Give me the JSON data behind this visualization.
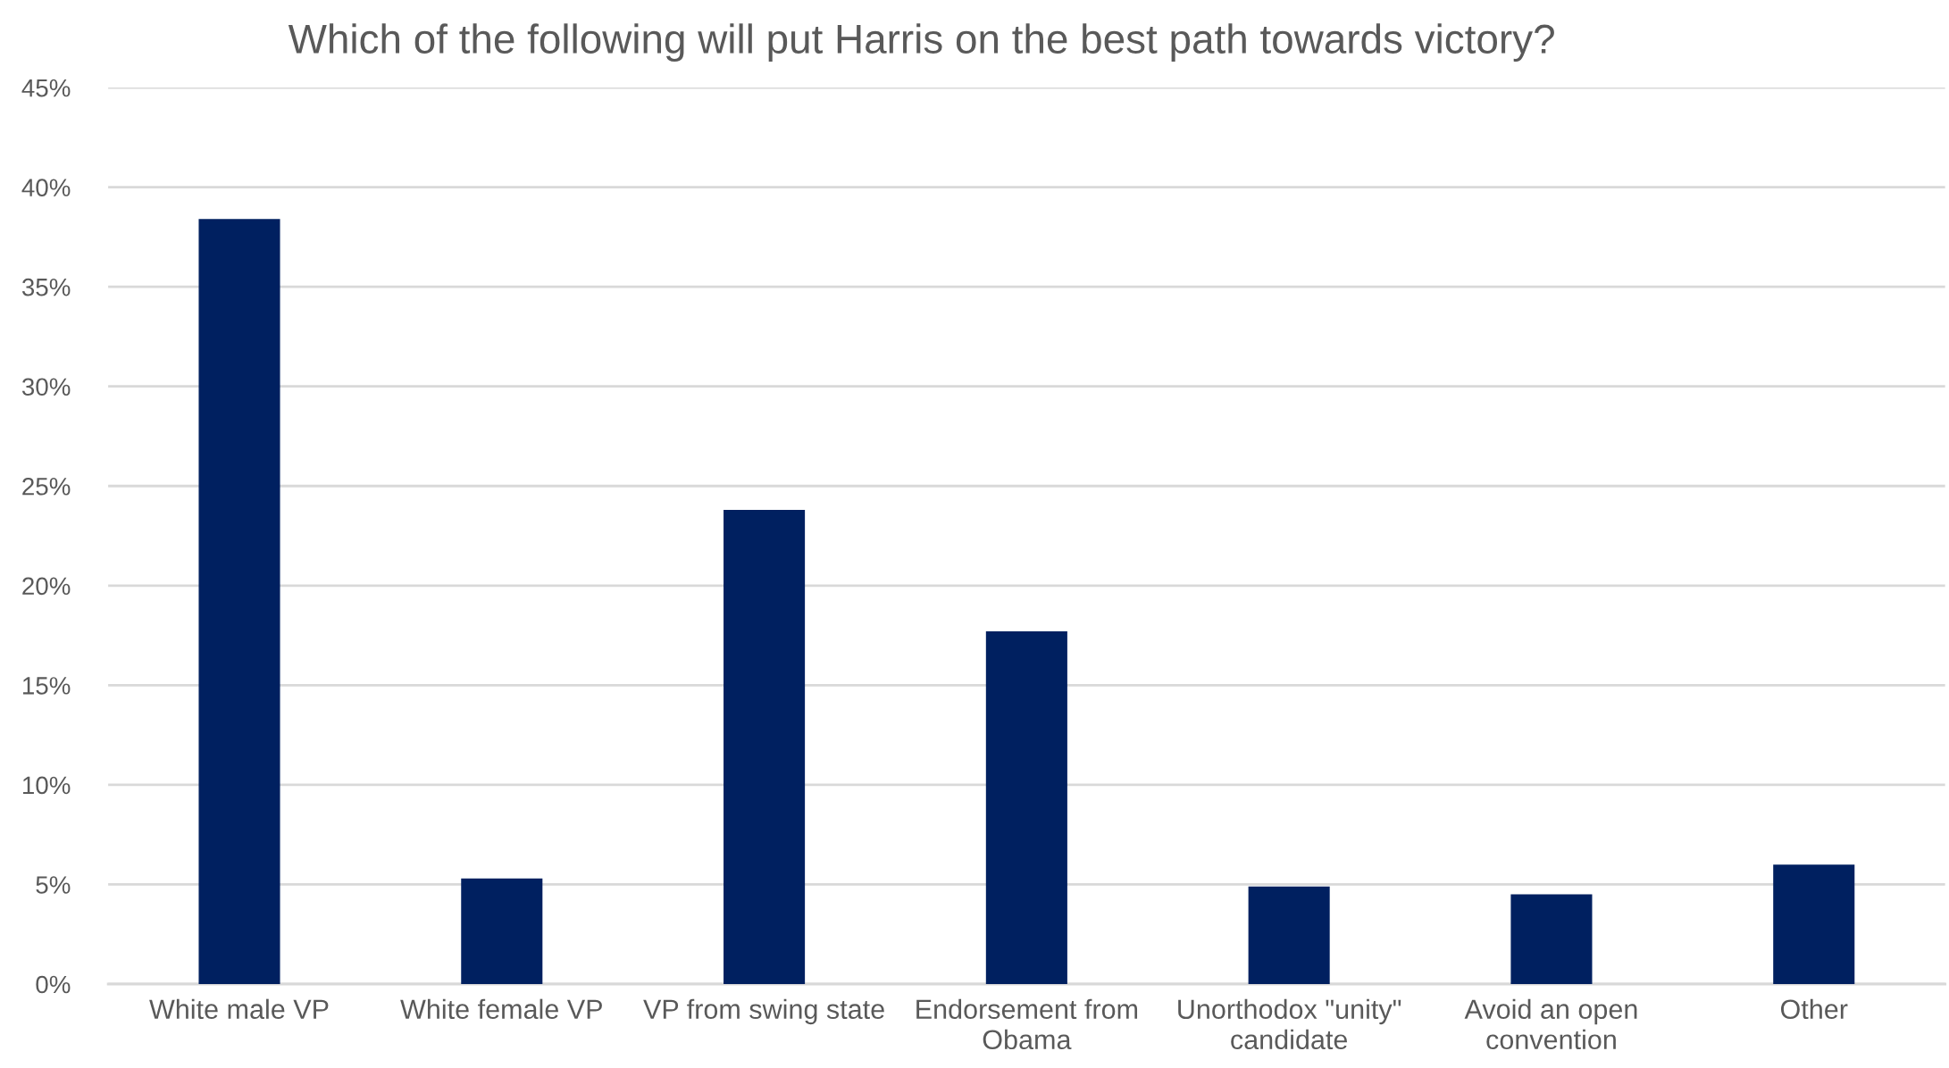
{
  "chart_data": {
    "type": "bar",
    "title": "Which of the following will put Harris on the best path towards victory?",
    "categories": [
      "White male VP",
      "White female VP",
      "VP from swing state",
      "Endorsement from Obama",
      "Unorthodox \"unity\" candidate",
      "Avoid an open convention",
      "Other"
    ],
    "values": [
      38.4,
      5.3,
      23.8,
      17.7,
      4.9,
      4.5,
      6.0
    ],
    "color": "#002060",
    "ylim": [
      0,
      45
    ],
    "yticks": [
      {
        "value": 0,
        "label": "0%"
      },
      {
        "value": 5,
        "label": "5%"
      },
      {
        "value": 10,
        "label": "10%"
      },
      {
        "value": 15,
        "label": "15%"
      },
      {
        "value": 20,
        "label": "20%"
      },
      {
        "value": 25,
        "label": "25%"
      },
      {
        "value": 30,
        "label": "30%"
      },
      {
        "value": 35,
        "label": "35%"
      },
      {
        "value": 40,
        "label": "40%"
      },
      {
        "value": 45,
        "label": "45%"
      }
    ],
    "grid": "y",
    "legend": false
  }
}
